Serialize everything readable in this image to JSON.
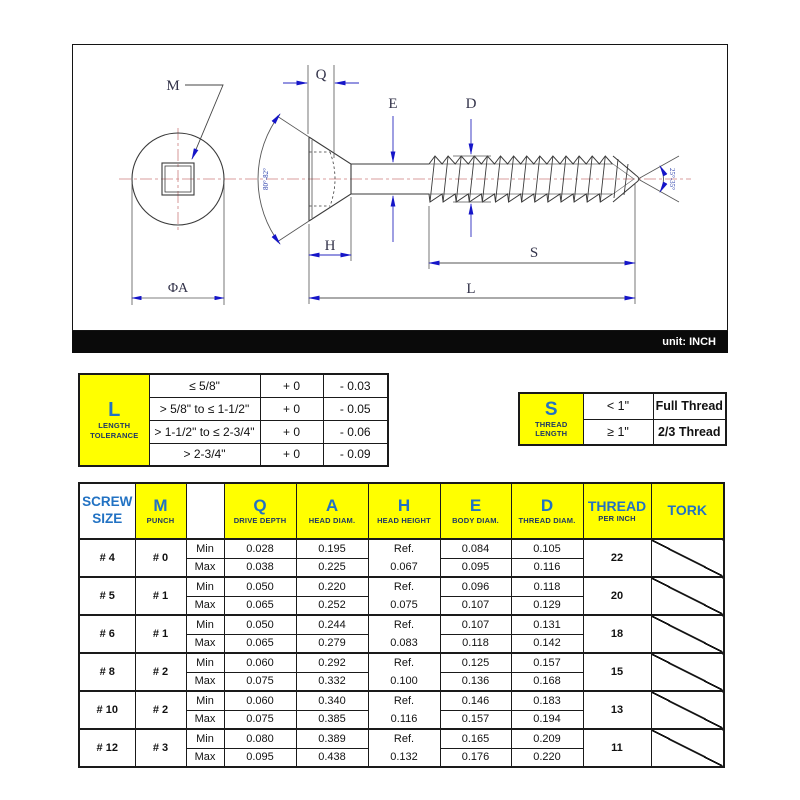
{
  "colors": {
    "accent_yellow": "#ffff00",
    "header_blue": "#2272c3",
    "caption_navy": "#1f3864",
    "arrow_blue": "#1515c8",
    "centerline_red": "#cc7e7e"
  },
  "drawing": {
    "unit_label": "unit: INCH",
    "labels": {
      "m": "M",
      "q": "Q",
      "e": "E",
      "d": "D",
      "h": "H",
      "s": "S",
      "l": "L",
      "phi_a": "ΦA"
    },
    "angles": {
      "head": "80°-82°",
      "tip": "25°-35°"
    }
  },
  "length_tolerance_table": {
    "symbol": "L",
    "caption1": "LENGTH",
    "caption2": "TOLERANCE",
    "rows": [
      {
        "range": "≤ 5/8\"",
        "plus": "+ 0",
        "minus": "- 0.03"
      },
      {
        "range": "> 5/8\" to ≤ 1-1/2\"",
        "plus": "+ 0",
        "minus": "- 0.05"
      },
      {
        "range": "> 1-1/2\" to ≤ 2-3/4\"",
        "plus": "+ 0",
        "minus": "- 0.06"
      },
      {
        "range": "> 2-3/4\"",
        "plus": "+ 0",
        "minus": "- 0.09"
      }
    ]
  },
  "thread_length_table": {
    "symbol": "S",
    "caption1": "THREAD",
    "caption2": "LENGTH",
    "rows": [
      {
        "range": "< 1\"",
        "value": "Full Thread"
      },
      {
        "range": "≥ 1\"",
        "value": "2/3 Thread"
      }
    ]
  },
  "spec_table": {
    "headers": {
      "screw_size1": "SCREW",
      "screw_size2": "SIZE",
      "m": "M",
      "m_sub": "PUNCH",
      "q": "Q",
      "q_sub": "DRIVE DEPTH",
      "a": "A",
      "a_sub": "HEAD DIAM.",
      "h": "H",
      "h_sub": "HEAD HEIGHT",
      "e": "E",
      "e_sub": "BODY DIAM.",
      "d": "D",
      "d_sub": "THREAD DIAM.",
      "thread": "THREAD",
      "thread_sub": "PER INCH",
      "tork": "TORK",
      "min": "Min",
      "max": "Max"
    },
    "rows": [
      {
        "size": "# 4",
        "punch": "# 0",
        "min": {
          "q": "0.028",
          "a": "0.195",
          "e": "0.084",
          "d": "0.105"
        },
        "max": {
          "q": "0.038",
          "a": "0.225",
          "e": "0.095",
          "d": "0.116"
        },
        "h_ref": "Ref.",
        "h_val": "0.067",
        "tpi": "22"
      },
      {
        "size": "# 5",
        "punch": "# 1",
        "min": {
          "q": "0.050",
          "a": "0.220",
          "e": "0.096",
          "d": "0.118"
        },
        "max": {
          "q": "0.065",
          "a": "0.252",
          "e": "0.107",
          "d": "0.129"
        },
        "h_ref": "Ref.",
        "h_val": "0.075",
        "tpi": "20"
      },
      {
        "size": "# 6",
        "punch": "# 1",
        "min": {
          "q": "0.050",
          "a": "0.244",
          "e": "0.107",
          "d": "0.131"
        },
        "max": {
          "q": "0.065",
          "a": "0.279",
          "e": "0.118",
          "d": "0.142"
        },
        "h_ref": "Ref.",
        "h_val": "0.083",
        "tpi": "18"
      },
      {
        "size": "# 8",
        "punch": "# 2",
        "min": {
          "q": "0.060",
          "a": "0.292",
          "e": "0.125",
          "d": "0.157"
        },
        "max": {
          "q": "0.075",
          "a": "0.332",
          "e": "0.136",
          "d": "0.168"
        },
        "h_ref": "Ref.",
        "h_val": "0.100",
        "tpi": "15"
      },
      {
        "size": "# 10",
        "punch": "# 2",
        "min": {
          "q": "0.060",
          "a": "0.340",
          "e": "0.146",
          "d": "0.183"
        },
        "max": {
          "q": "0.075",
          "a": "0.385",
          "e": "0.157",
          "d": "0.194"
        },
        "h_ref": "Ref.",
        "h_val": "0.116",
        "tpi": "13"
      },
      {
        "size": "# 12",
        "punch": "# 3",
        "min": {
          "q": "0.080",
          "a": "0.389",
          "e": "0.165",
          "d": "0.209"
        },
        "max": {
          "q": "0.095",
          "a": "0.438",
          "e": "0.176",
          "d": "0.220"
        },
        "h_ref": "Ref.",
        "h_val": "0.132",
        "tpi": "11"
      }
    ]
  }
}
